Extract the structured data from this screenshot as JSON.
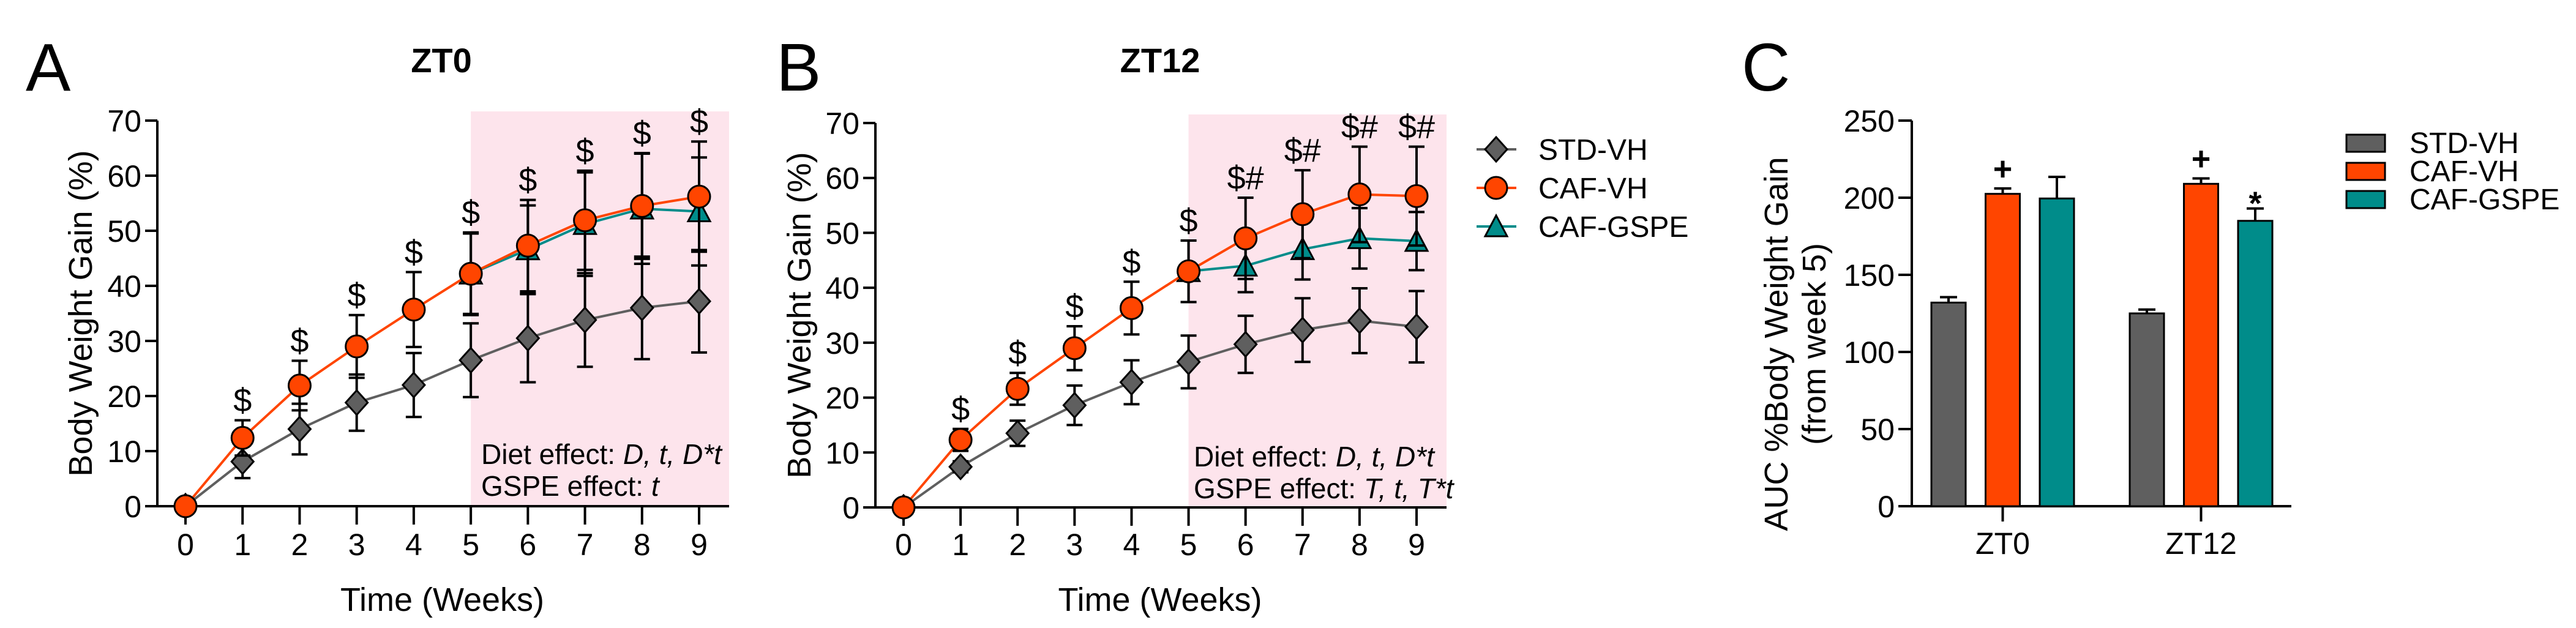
{
  "colors": {
    "std": "#5f5f5f",
    "caf": "#ff4500",
    "gspe": "#008c8a",
    "shade": "#fde4ec"
  },
  "legend": [
    "STD-VH",
    "CAF-VH",
    "CAF-GSPE"
  ],
  "chart_data": [
    {
      "type": "line",
      "panel_label": "A",
      "title": "ZT0",
      "xlabel": "Time (Weeks)",
      "ylabel": "Body Weight Gain (%)",
      "ylim": [
        0,
        70
      ],
      "yticks": [
        0,
        10,
        20,
        30,
        40,
        50,
        60,
        70
      ],
      "x": [
        0,
        1,
        2,
        3,
        4,
        5,
        6,
        7,
        8,
        9
      ],
      "shaded_from_week": 5,
      "series": [
        {
          "name": "STD-VH",
          "marker": "diamond",
          "values": [
            0,
            8.1,
            14,
            18.8,
            22,
            26.5,
            30.5,
            33.8,
            36,
            37.2
          ],
          "errors": [
            0,
            3,
            4.6,
            5.1,
            5.8,
            6.7,
            8,
            8.5,
            9.3,
            9.3
          ]
        },
        {
          "name": "CAF-GSPE",
          "marker": "triangle",
          "values": [
            0,
            12.4,
            21.9,
            29,
            35.7,
            42.2,
            46.6,
            51.2,
            54,
            53.5
          ],
          "errors": [
            0,
            3.2,
            4.5,
            5.7,
            6.7,
            7.3,
            8,
            9.4,
            10,
            9.8
          ]
        },
        {
          "name": "CAF-VH",
          "marker": "circle",
          "values": [
            0,
            12.4,
            21.9,
            29,
            35.7,
            42.2,
            47.3,
            51.9,
            54.5,
            56.2
          ],
          "errors": [
            0,
            3.2,
            4.5,
            5.7,
            6.8,
            7.5,
            8.3,
            9,
            9.6,
            10
          ]
        }
      ],
      "annotations": [
        {
          "x": 1,
          "text": "$"
        },
        {
          "x": 2,
          "text": "$"
        },
        {
          "x": 3,
          "text": "$"
        },
        {
          "x": 4,
          "text": "$"
        },
        {
          "x": 5,
          "text": "$"
        },
        {
          "x": 6,
          "text": "$"
        },
        {
          "x": 7,
          "text": "$"
        },
        {
          "x": 8,
          "text": "$"
        },
        {
          "x": 9,
          "text": "$"
        }
      ],
      "effects": [
        {
          "label": "Diet effect: ",
          "terms": "D, t, D*t"
        },
        {
          "label": "GSPE effect: ",
          "terms": "t"
        }
      ]
    },
    {
      "type": "line",
      "panel_label": "B",
      "title": "ZT12",
      "xlabel": "Time (Weeks)",
      "ylabel": "Body Weight Gain (%)",
      "ylim": [
        0,
        70
      ],
      "yticks": [
        0,
        10,
        20,
        30,
        40,
        50,
        60,
        70
      ],
      "x": [
        0,
        1,
        2,
        3,
        4,
        5,
        6,
        7,
        8,
        9
      ],
      "shaded_from_week": 5,
      "legend_position": "right",
      "series": [
        {
          "name": "STD-VH",
          "marker": "diamond",
          "values": [
            0,
            7.4,
            13.5,
            18.6,
            22.8,
            26.5,
            29.7,
            32.3,
            34,
            32.9
          ],
          "errors": [
            0,
            1,
            2.3,
            3.6,
            4,
            4.8,
            5.2,
            5.8,
            5.9,
            6.5
          ]
        },
        {
          "name": "CAF-GSPE",
          "marker": "triangle",
          "values": [
            0,
            12.3,
            21.6,
            29,
            36.3,
            43,
            44,
            47,
            49,
            48.5
          ],
          "errors": [
            0,
            2,
            2.9,
            4,
            4.8,
            5.6,
            4.8,
            5.5,
            5.5,
            5.3
          ]
        },
        {
          "name": "CAF-VH",
          "marker": "circle",
          "values": [
            0,
            12.3,
            21.6,
            29,
            36.3,
            43,
            49,
            53.4,
            57,
            56.7
          ],
          "errors": [
            0,
            2,
            2.9,
            4,
            4.8,
            5.6,
            7.4,
            8,
            8.7,
            9
          ]
        }
      ],
      "annotations": [
        {
          "x": 1,
          "text": "$"
        },
        {
          "x": 2,
          "text": "$"
        },
        {
          "x": 3,
          "text": "$"
        },
        {
          "x": 4,
          "text": "$"
        },
        {
          "x": 5,
          "text": "$"
        },
        {
          "x": 6,
          "text": "$#"
        },
        {
          "x": 7,
          "text": "$#"
        },
        {
          "x": 8,
          "text": "$#"
        },
        {
          "x": 9,
          "text": "$#"
        }
      ],
      "effects": [
        {
          "label": "Diet effect: ",
          "terms": "D, t, D*t"
        },
        {
          "label": "GSPE effect: ",
          "terms": "T, t, T*t"
        }
      ]
    },
    {
      "type": "bar",
      "panel_label": "C",
      "ylabel": "AUC %Body Weight Gain",
      "ylabel2": "(from week 5)",
      "ylim": [
        0,
        250
      ],
      "yticks": [
        0,
        50,
        100,
        150,
        200,
        250
      ],
      "categories": [
        "ZT0",
        "ZT12"
      ],
      "legend_position": "right",
      "series": [
        {
          "name": "STD-VH",
          "values": [
            132,
            125
          ],
          "errors": [
            3.5,
            2.5
          ]
        },
        {
          "name": "CAF-VH",
          "values": [
            202.5,
            209
          ],
          "errors": [
            3.5,
            3.5
          ]
        },
        {
          "name": "CAF-GSPE",
          "values": [
            199.5,
            185
          ],
          "errors": [
            14,
            8
          ]
        }
      ],
      "annotations": [
        {
          "category": "ZT0",
          "series": "CAF-VH",
          "text": "+"
        },
        {
          "category": "ZT12",
          "series": "CAF-VH",
          "text": "+"
        },
        {
          "category": "ZT12",
          "series": "CAF-GSPE",
          "text": "*"
        }
      ]
    }
  ]
}
